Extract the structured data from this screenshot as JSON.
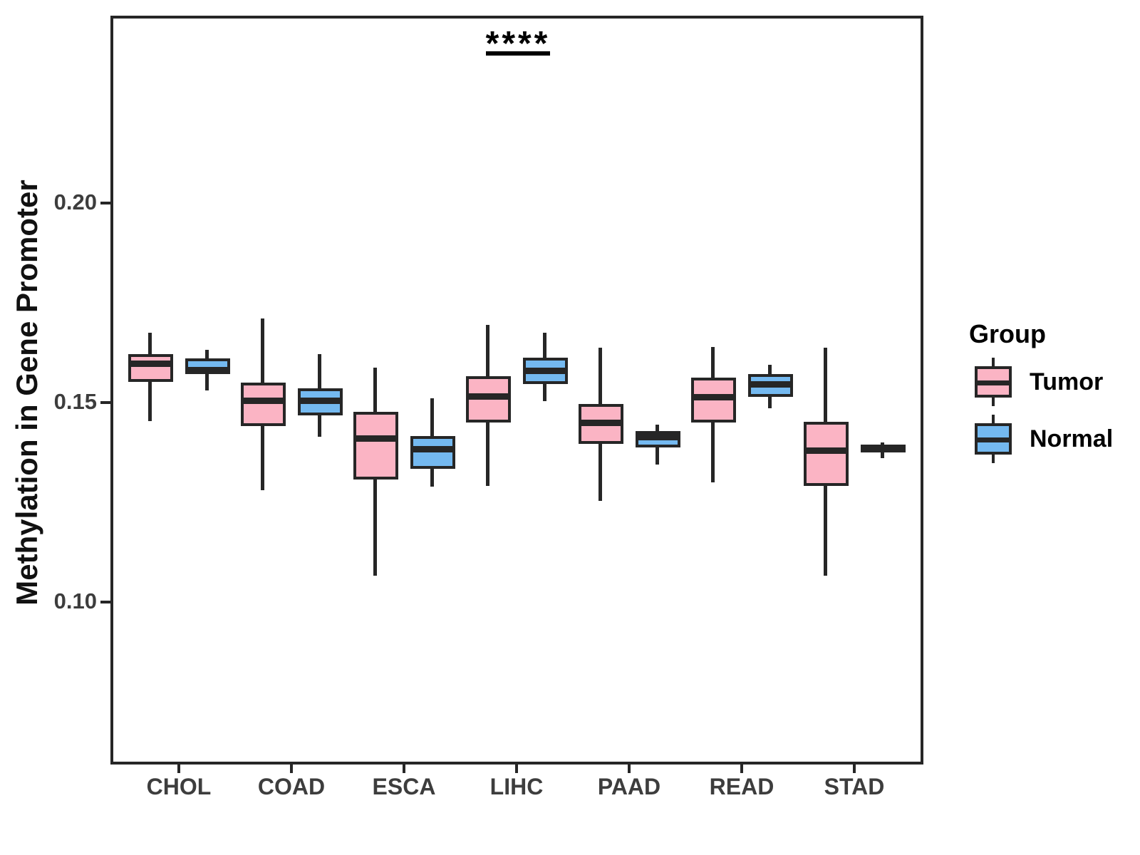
{
  "chart_data": {
    "type": "boxplot",
    "title": "",
    "xlabel": "",
    "ylabel": "Methylation in Gene Promoter",
    "categories": [
      "CHOL",
      "COAD",
      "ESCA",
      "LIHC",
      "PAAD",
      "READ",
      "STAD"
    ],
    "y_ticks": [
      0.2,
      0.15,
      0.1
    ],
    "ylim": [
      0.0595,
      0.247
    ],
    "grid": false,
    "stroke_color": "#262626",
    "legend": {
      "title": "Group",
      "position": "right",
      "entries": [
        {
          "label": "Tumor",
          "fill": "#FBB4C4"
        },
        {
          "label": "Normal",
          "fill": "#74B9F0"
        }
      ]
    },
    "series": [
      {
        "name": "Tumor",
        "fill": "#FBB4C4",
        "boxes": [
          {
            "category": "CHOL",
            "low": 0.1454,
            "q1": 0.1552,
            "median": 0.1598,
            "q3": 0.1621,
            "high": 0.1675
          },
          {
            "category": "COAD",
            "low": 0.128,
            "q1": 0.1441,
            "median": 0.1505,
            "q3": 0.155,
            "high": 0.1711
          },
          {
            "category": "ESCA",
            "low": 0.1066,
            "q1": 0.1307,
            "median": 0.1411,
            "q3": 0.1477,
            "high": 0.1588
          },
          {
            "category": "LIHC",
            "low": 0.1291,
            "q1": 0.145,
            "median": 0.1516,
            "q3": 0.1566,
            "high": 0.1695
          },
          {
            "category": "PAAD",
            "low": 0.1254,
            "q1": 0.1396,
            "median": 0.145,
            "q3": 0.1496,
            "high": 0.1638
          },
          {
            "category": "READ",
            "low": 0.13,
            "q1": 0.145,
            "median": 0.1514,
            "q3": 0.1563,
            "high": 0.1639
          },
          {
            "category": "STAD",
            "low": 0.1066,
            "q1": 0.1291,
            "median": 0.138,
            "q3": 0.1452,
            "high": 0.1638
          }
        ]
      },
      {
        "name": "Normal",
        "fill": "#74B9F0",
        "boxes": [
          {
            "category": "CHOL",
            "low": 0.153,
            "q1": 0.1571,
            "median": 0.1582,
            "q3": 0.1611,
            "high": 0.1632
          },
          {
            "category": "COAD",
            "low": 0.1414,
            "q1": 0.1468,
            "median": 0.1504,
            "q3": 0.1536,
            "high": 0.1621
          },
          {
            "category": "ESCA",
            "low": 0.1289,
            "q1": 0.1334,
            "median": 0.1384,
            "q3": 0.1416,
            "high": 0.1511
          },
          {
            "category": "LIHC",
            "low": 0.1504,
            "q1": 0.1546,
            "median": 0.158,
            "q3": 0.1613,
            "high": 0.1675
          },
          {
            "category": "PAAD",
            "low": 0.1345,
            "q1": 0.1388,
            "median": 0.1413,
            "q3": 0.1429,
            "high": 0.1445
          },
          {
            "category": "READ",
            "low": 0.1486,
            "q1": 0.1514,
            "median": 0.1545,
            "q3": 0.1571,
            "high": 0.1595
          },
          {
            "category": "STAD",
            "low": 0.1361,
            "q1": 0.1375,
            "median": 0.1384,
            "q3": 0.1395,
            "high": 0.14
          }
        ]
      }
    ],
    "annotation": {
      "text": "****",
      "target_category": "LIHC",
      "underline": true
    }
  }
}
